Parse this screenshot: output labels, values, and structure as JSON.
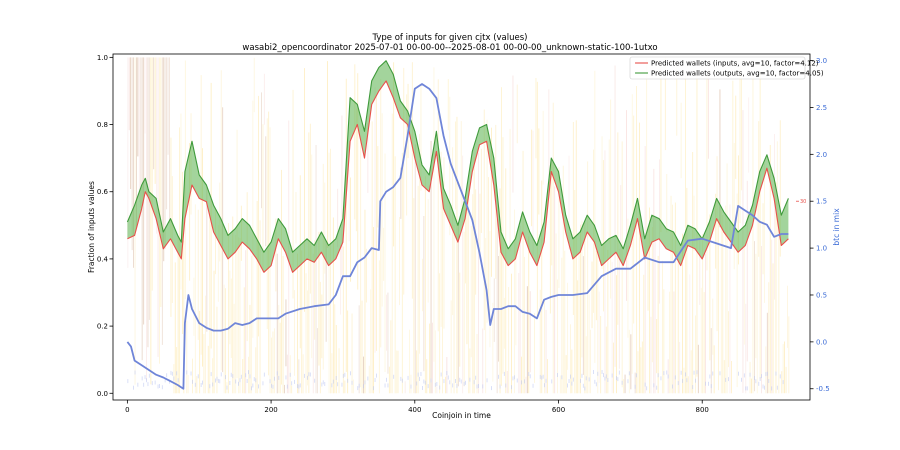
{
  "chart_data": {
    "type": "line",
    "title": "Type of inputs for given cjtx (values)",
    "subtitle": "wasabi2_opencoordinator 2025-07-01 00-00-00--2025-08-01 00-00-00_unknown-static-100-1utxo",
    "xlabel": "Coinjoin in time",
    "ylabel": "Fraction of inputs values",
    "y2label": "btc in mix",
    "xlim": [
      -20,
      950
    ],
    "ylim": [
      -0.02,
      1.01
    ],
    "y2lim": [
      -0.62,
      3.07
    ],
    "xticks": [
      0,
      200,
      400,
      600,
      800
    ],
    "yticks": [
      0.0,
      0.2,
      0.4,
      0.6,
      0.8,
      1.0
    ],
    "y2ticks": [
      -0.5,
      0.0,
      0.5,
      1.0,
      1.5,
      2.0,
      2.5,
      3.0
    ],
    "right_marker_label": "30",
    "right_marker_value": 1.5,
    "legend": {
      "placement": "top-right",
      "entries": [
        "Predicted wallets (inputs, avg=10, factor=4.12)",
        "Predicted wallets (outputs, avg=10, factor=4.05)"
      ]
    },
    "colors": {
      "inputs": "#e8504a",
      "outputs": "#3f9a3b",
      "fill": "#58b04a",
      "btc": "#6f85d8",
      "background_stripes": [
        "#fde9b0",
        "#f6d9d6",
        "#d9b8a0",
        "#bcc6f2"
      ]
    },
    "series": [
      {
        "name": "Predicted wallets (inputs, avg=10, factor=4.12)",
        "axis": "left",
        "x": [
          0,
          10,
          20,
          25,
          30,
          40,
          50,
          60,
          70,
          75,
          80,
          90,
          100,
          110,
          120,
          130,
          140,
          150,
          160,
          170,
          180,
          190,
          200,
          210,
          220,
          230,
          240,
          250,
          260,
          270,
          280,
          290,
          300,
          310,
          320,
          330,
          340,
          350,
          360,
          370,
          380,
          390,
          400,
          410,
          420,
          430,
          440,
          450,
          460,
          470,
          480,
          490,
          500,
          510,
          520,
          530,
          540,
          550,
          560,
          570,
          580,
          590,
          600,
          610,
          620,
          630,
          640,
          650,
          660,
          670,
          680,
          690,
          700,
          710,
          720,
          730,
          740,
          750,
          760,
          770,
          780,
          790,
          800,
          810,
          820,
          830,
          840,
          850,
          860,
          870,
          880,
          890,
          900,
          910,
          920
        ],
        "y": [
          0.46,
          0.47,
          0.55,
          0.6,
          0.58,
          0.52,
          0.43,
          0.46,
          0.42,
          0.4,
          0.52,
          0.62,
          0.58,
          0.57,
          0.48,
          0.44,
          0.4,
          0.42,
          0.45,
          0.43,
          0.4,
          0.36,
          0.38,
          0.46,
          0.42,
          0.36,
          0.38,
          0.4,
          0.39,
          0.42,
          0.38,
          0.4,
          0.45,
          0.75,
          0.8,
          0.7,
          0.86,
          0.9,
          0.93,
          0.88,
          0.82,
          0.8,
          0.7,
          0.62,
          0.6,
          0.72,
          0.55,
          0.5,
          0.45,
          0.52,
          0.66,
          0.74,
          0.75,
          0.62,
          0.42,
          0.38,
          0.4,
          0.48,
          0.42,
          0.38,
          0.45,
          0.66,
          0.6,
          0.48,
          0.4,
          0.42,
          0.48,
          0.45,
          0.38,
          0.4,
          0.42,
          0.38,
          0.44,
          0.52,
          0.4,
          0.45,
          0.46,
          0.43,
          0.42,
          0.38,
          0.44,
          0.43,
          0.4,
          0.45,
          0.52,
          0.48,
          0.45,
          0.42,
          0.44,
          0.5,
          0.6,
          0.67,
          0.58,
          0.44,
          0.46
        ]
      },
      {
        "name": "Predicted wallets (outputs, avg=10, factor=4.05)",
        "axis": "left",
        "x": [
          0,
          10,
          20,
          25,
          30,
          40,
          50,
          60,
          70,
          75,
          80,
          90,
          100,
          110,
          120,
          130,
          140,
          150,
          160,
          170,
          180,
          190,
          200,
          210,
          220,
          230,
          240,
          250,
          260,
          270,
          280,
          290,
          300,
          310,
          320,
          330,
          340,
          350,
          360,
          370,
          380,
          390,
          400,
          410,
          420,
          430,
          440,
          450,
          460,
          470,
          480,
          490,
          500,
          510,
          520,
          530,
          540,
          550,
          560,
          570,
          580,
          590,
          600,
          610,
          620,
          630,
          640,
          650,
          660,
          670,
          680,
          690,
          700,
          710,
          720,
          730,
          740,
          750,
          760,
          770,
          780,
          790,
          800,
          810,
          820,
          830,
          840,
          850,
          860,
          870,
          880,
          890,
          900,
          910,
          920
        ],
        "y": [
          0.51,
          0.56,
          0.62,
          0.64,
          0.6,
          0.58,
          0.48,
          0.52,
          0.47,
          0.45,
          0.66,
          0.75,
          0.65,
          0.62,
          0.56,
          0.52,
          0.47,
          0.49,
          0.52,
          0.5,
          0.46,
          0.42,
          0.45,
          0.52,
          0.49,
          0.42,
          0.44,
          0.46,
          0.44,
          0.48,
          0.44,
          0.46,
          0.52,
          0.88,
          0.86,
          0.78,
          0.93,
          0.97,
          0.99,
          0.95,
          0.87,
          0.84,
          0.78,
          0.68,
          0.65,
          0.78,
          0.61,
          0.56,
          0.5,
          0.58,
          0.72,
          0.79,
          0.8,
          0.7,
          0.48,
          0.43,
          0.46,
          0.54,
          0.48,
          0.44,
          0.51,
          0.7,
          0.66,
          0.53,
          0.46,
          0.48,
          0.53,
          0.5,
          0.44,
          0.46,
          0.47,
          0.43,
          0.5,
          0.58,
          0.46,
          0.53,
          0.52,
          0.49,
          0.48,
          0.44,
          0.5,
          0.49,
          0.46,
          0.51,
          0.58,
          0.54,
          0.51,
          0.48,
          0.5,
          0.56,
          0.66,
          0.71,
          0.64,
          0.53,
          0.58
        ]
      },
      {
        "name": "btc in mix",
        "axis": "right",
        "x": [
          0,
          5,
          10,
          20,
          30,
          40,
          50,
          60,
          70,
          78,
          80,
          85,
          90,
          100,
          110,
          120,
          130,
          140,
          150,
          160,
          170,
          180,
          200,
          210,
          220,
          240,
          260,
          280,
          290,
          300,
          310,
          320,
          330,
          340,
          350,
          352,
          360,
          370,
          380,
          390,
          400,
          410,
          420,
          430,
          440,
          450,
          460,
          470,
          480,
          490,
          500,
          505,
          510,
          520,
          530,
          540,
          550,
          560,
          570,
          580,
          590,
          600,
          620,
          640,
          660,
          680,
          700,
          720,
          740,
          760,
          780,
          800,
          820,
          840,
          850,
          860,
          870,
          880,
          890,
          900,
          910,
          920
        ],
        "y": [
          0.0,
          -0.05,
          -0.2,
          -0.25,
          -0.3,
          -0.35,
          -0.38,
          -0.42,
          -0.46,
          -0.5,
          0.2,
          0.5,
          0.35,
          0.2,
          0.15,
          0.12,
          0.12,
          0.14,
          0.2,
          0.18,
          0.2,
          0.25,
          0.25,
          0.25,
          0.3,
          0.35,
          0.38,
          0.4,
          0.5,
          0.7,
          0.7,
          0.85,
          0.9,
          1.0,
          0.98,
          1.5,
          1.6,
          1.65,
          1.75,
          2.2,
          2.7,
          2.75,
          2.7,
          2.6,
          2.2,
          1.9,
          1.7,
          1.5,
          1.3,
          0.95,
          0.55,
          0.18,
          0.35,
          0.35,
          0.38,
          0.38,
          0.32,
          0.3,
          0.25,
          0.45,
          0.48,
          0.5,
          0.5,
          0.52,
          0.7,
          0.78,
          0.78,
          0.9,
          0.85,
          0.85,
          1.08,
          1.1,
          1.05,
          1.0,
          1.45,
          1.4,
          1.35,
          1.28,
          1.25,
          1.12,
          1.15,
          1.15
        ]
      }
    ]
  }
}
